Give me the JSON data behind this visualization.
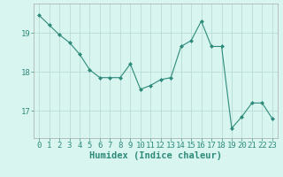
{
  "x": [
    0,
    1,
    2,
    3,
    4,
    5,
    6,
    7,
    8,
    9,
    10,
    11,
    12,
    13,
    14,
    15,
    16,
    17,
    18,
    19,
    20,
    21,
    22,
    23
  ],
  "y": [
    19.45,
    19.2,
    18.95,
    18.75,
    18.45,
    18.05,
    17.85,
    17.85,
    17.85,
    18.2,
    17.55,
    17.65,
    17.8,
    17.85,
    18.65,
    18.8,
    19.3,
    18.65,
    18.65,
    16.55,
    16.85,
    17.2,
    17.2,
    16.8
  ],
  "line_color": "#2e8b7a",
  "marker": "D",
  "marker_size": 2.0,
  "bg_color": "#d8f5f0",
  "grid_color": "#b8ddd8",
  "xlabel": "Humidex (Indice chaleur)",
  "ylim": [
    16.3,
    19.75
  ],
  "yticks": [
    17,
    18,
    19
  ],
  "xticks": [
    0,
    1,
    2,
    3,
    4,
    5,
    6,
    7,
    8,
    9,
    10,
    11,
    12,
    13,
    14,
    15,
    16,
    17,
    18,
    19,
    20,
    21,
    22,
    23
  ],
  "tick_fontsize": 6.5,
  "xlabel_fontsize": 7.5
}
